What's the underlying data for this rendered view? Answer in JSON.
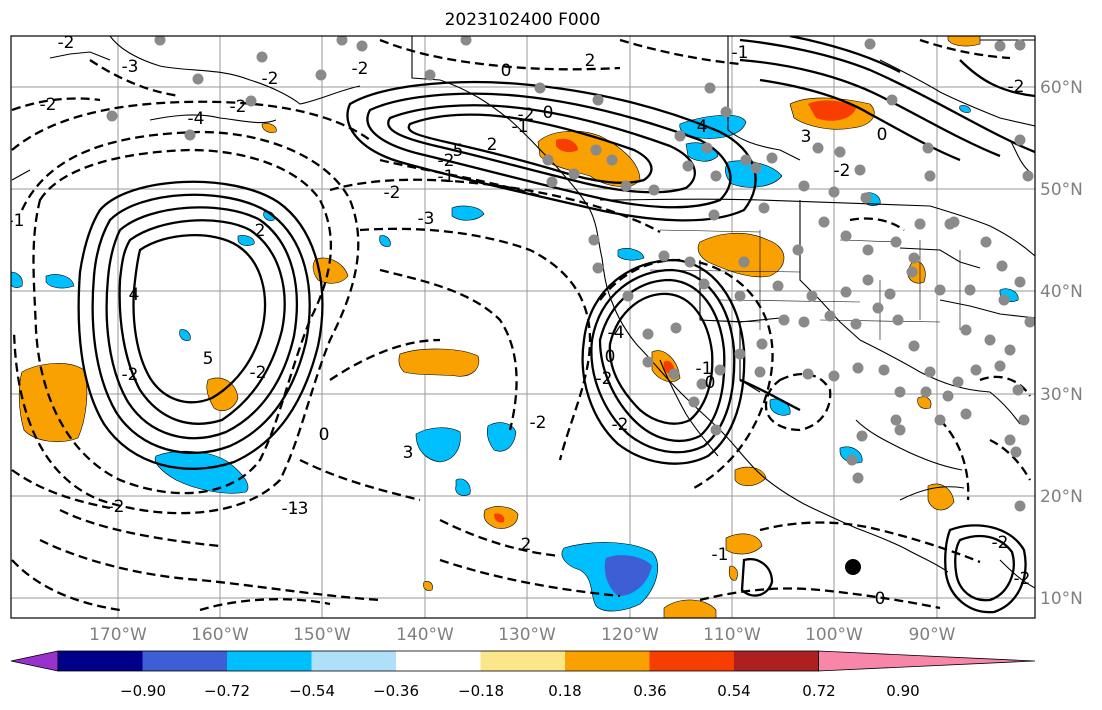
{
  "title": "2023102400 F000",
  "map": {
    "lon_ticks": [
      "170°W",
      "160°W",
      "150°W",
      "140°W",
      "130°W",
      "120°W",
      "110°W",
      "100°W",
      "90°W"
    ],
    "lat_ticks": [
      "60°N",
      "50°N",
      "40°N",
      "30°N",
      "20°N",
      "10°N"
    ],
    "contour_labels": [
      "-2",
      "-3",
      "-2",
      "-4",
      "-2",
      "0",
      "2",
      "-2",
      "5",
      "4",
      "-2",
      "-1",
      "-2",
      "-3",
      "-1",
      "0",
      "2",
      "-1",
      "4",
      "3",
      "5",
      "2",
      "-2",
      "-2",
      "0",
      "-3",
      "-4",
      "-2",
      "-2",
      "-1",
      "0",
      "0",
      "-2",
      "3",
      "2",
      "-2",
      "-1",
      "-2",
      "-2",
      "-1",
      "-2",
      "0",
      "-2",
      "-1",
      "-2",
      "0",
      "-2"
    ]
  },
  "colorbar": {
    "colors": [
      "#9932cc",
      "#00008b",
      "#3d5ed4",
      "#00bfff",
      "#afe0fa",
      "#ffffff",
      "#fbe68a",
      "#f8a100",
      "#f83d00",
      "#b01f1f",
      "#f886a8"
    ],
    "labels": [
      "−0.90",
      "−0.72",
      "−0.54",
      "−0.36",
      "−0.18",
      "0.18",
      "0.36",
      "0.54",
      "0.72",
      "0.90"
    ]
  }
}
